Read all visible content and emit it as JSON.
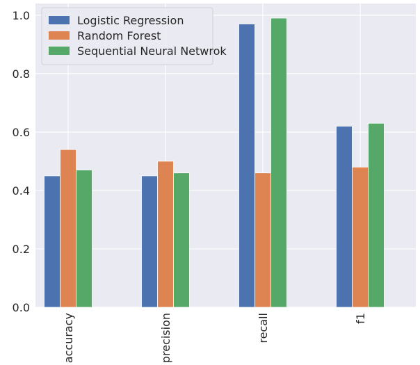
{
  "chart_data": {
    "type": "bar",
    "categories": [
      "accuracy",
      "precision",
      "recall",
      "f1"
    ],
    "series": [
      {
        "name": "Logistic Regression",
        "values": [
          0.45,
          0.45,
          0.97,
          0.62
        ],
        "color": "#4c72b0"
      },
      {
        "name": "Random Forest",
        "values": [
          0.54,
          0.5,
          0.46,
          0.48
        ],
        "color": "#dd8452"
      },
      {
        "name": "Sequential Neural Netwrok",
        "values": [
          0.47,
          0.46,
          0.99,
          0.63
        ],
        "color": "#55a868"
      }
    ],
    "y_ticks": [
      "0.0",
      "0.2",
      "0.4",
      "0.6",
      "0.8",
      "1.0"
    ],
    "ylim": [
      0,
      1.04
    ],
    "grid": true,
    "legend_position": "top-left",
    "background_color": "#eaeaf2"
  }
}
